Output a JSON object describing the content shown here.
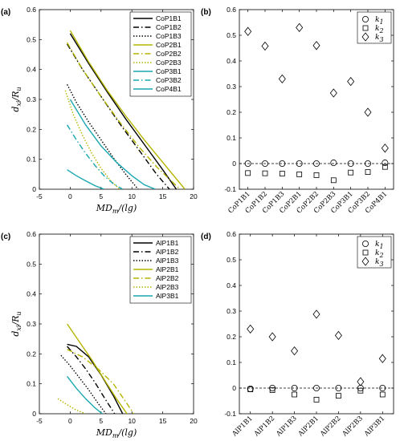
{
  "chart_data": [
    {
      "panel_label": "(a)",
      "type": "line",
      "xlabel": "MD_m/(lg)",
      "ylabel": "d_xi/R_u",
      "xlim": [
        -5,
        20
      ],
      "ylim": [
        0,
        0.6
      ],
      "xticks": [
        -5,
        0,
        5,
        10,
        15,
        20
      ],
      "yticks": [
        0,
        0.1,
        0.2,
        0.3,
        0.4,
        0.5,
        0.6
      ],
      "legend_position": "top-right",
      "series": [
        {
          "name": "CoP1B1",
          "color": "#000000",
          "style": "solid",
          "x": [
            0,
            3,
            6,
            9,
            12,
            15,
            17.2
          ],
          "y": [
            0.52,
            0.42,
            0.325,
            0.235,
            0.15,
            0.065,
            0.0
          ]
        },
        {
          "name": "CoP1B2",
          "color": "#000000",
          "style": "dashdot",
          "x": [
            -0.5,
            2,
            5,
            8,
            11,
            14,
            16.1
          ],
          "y": [
            0.485,
            0.4,
            0.31,
            0.22,
            0.135,
            0.05,
            0.0
          ]
        },
        {
          "name": "CoP1B3",
          "color": "#000000",
          "style": "dotted",
          "x": [
            -0.5,
            1,
            3,
            5,
            7,
            9,
            11
          ],
          "y": [
            0.35,
            0.29,
            0.225,
            0.165,
            0.105,
            0.05,
            0.0
          ]
        },
        {
          "name": "CoP2B1",
          "color": "#b5b500",
          "style": "solid",
          "x": [
            0,
            3,
            6,
            9,
            12,
            15,
            18.6
          ],
          "y": [
            0.53,
            0.425,
            0.33,
            0.245,
            0.165,
            0.09,
            0.0
          ]
        },
        {
          "name": "CoP2B2",
          "color": "#b5b500",
          "style": "dashdot",
          "x": [
            -0.5,
            2,
            5,
            8,
            11,
            14,
            17.8
          ],
          "y": [
            0.49,
            0.4,
            0.31,
            0.225,
            0.145,
            0.075,
            0.0
          ]
        },
        {
          "name": "CoP2B3",
          "color": "#b5b500",
          "style": "dotted",
          "x": [
            -0.8,
            0.5,
            2,
            3.5,
            5,
            6.5,
            8
          ],
          "y": [
            0.33,
            0.25,
            0.18,
            0.12,
            0.07,
            0.03,
            0.0
          ]
        },
        {
          "name": "CoP3B1",
          "color": "#1aa7b0",
          "style": "solid",
          "x": [
            0,
            2.5,
            5,
            7.5,
            10,
            12,
            13.8
          ],
          "y": [
            0.3,
            0.215,
            0.145,
            0.09,
            0.045,
            0.015,
            0.0
          ]
        },
        {
          "name": "CoP3B2",
          "color": "#1aa7b0",
          "style": "dashdot",
          "x": [
            -0.5,
            1,
            2.5,
            4,
            5.5,
            7,
            8.5
          ],
          "y": [
            0.215,
            0.165,
            0.12,
            0.08,
            0.045,
            0.018,
            0.0
          ]
        },
        {
          "name": "CoP4B1",
          "color": "#1aa7b0",
          "style": "solid",
          "x": [
            -0.5,
            1,
            2.5,
            4,
            5.5
          ],
          "y": [
            0.065,
            0.045,
            0.028,
            0.012,
            0.0
          ]
        }
      ]
    },
    {
      "panel_label": "(b)",
      "type": "scatter",
      "categories": [
        "CoP1B1",
        "CoP1B2",
        "CoP1B3",
        "CoP2B1",
        "CoP2B2",
        "CoP2B3",
        "CoP3B1",
        "CoP3B2",
        "CoP4B1"
      ],
      "ylim": [
        -0.1,
        0.6
      ],
      "yticks": [
        -0.1,
        0,
        0.1,
        0.2,
        0.3,
        0.4,
        0.5,
        0.6
      ],
      "legend_position": "top-right",
      "series": [
        {
          "name": "k1",
          "marker": "circle",
          "values": [
            0.0,
            0.0,
            0.0,
            0.0,
            0.0,
            0.003,
            0.0,
            0.0,
            0.003
          ]
        },
        {
          "name": "k2",
          "marker": "square",
          "values": [
            -0.037,
            -0.038,
            -0.039,
            -0.042,
            -0.045,
            -0.065,
            -0.035,
            -0.033,
            -0.013
          ]
        },
        {
          "name": "k3",
          "marker": "diamond",
          "values": [
            0.515,
            0.458,
            0.33,
            0.53,
            0.46,
            0.275,
            0.32,
            0.2,
            0.06
          ]
        }
      ]
    },
    {
      "panel_label": "(c)",
      "type": "line",
      "xlabel": "MD_m/(lg)",
      "ylabel": "d_xi/R_u",
      "xlim": [
        -5,
        20
      ],
      "ylim": [
        0,
        0.6
      ],
      "xticks": [
        -5,
        0,
        5,
        10,
        15,
        20
      ],
      "yticks": [
        0,
        0.1,
        0.2,
        0.3,
        0.4,
        0.5,
        0.6
      ],
      "legend_position": "top-right",
      "series": [
        {
          "name": "AlP1B1",
          "color": "#000000",
          "style": "solid",
          "x": [
            -0.5,
            1,
            3,
            5,
            7,
            8.5
          ],
          "y": [
            0.232,
            0.225,
            0.19,
            0.13,
            0.06,
            0.0
          ]
        },
        {
          "name": "AlP1B2",
          "color": "#000000",
          "style": "dashdot",
          "x": [
            -0.5,
            1,
            2.5,
            4,
            5.5,
            7.2
          ],
          "y": [
            0.225,
            0.19,
            0.15,
            0.105,
            0.055,
            0.0
          ]
        },
        {
          "name": "AlP1B3",
          "color": "#000000",
          "style": "dotted",
          "x": [
            -1.5,
            0,
            1.5,
            3,
            4.5,
            5.8
          ],
          "y": [
            0.195,
            0.16,
            0.12,
            0.08,
            0.035,
            0.0
          ]
        },
        {
          "name": "AlP2B1",
          "color": "#b5b500",
          "style": "solid",
          "x": [
            -0.5,
            1.5,
            3.5,
            5.5,
            7.5,
            9.2
          ],
          "y": [
            0.3,
            0.24,
            0.18,
            0.115,
            0.05,
            0.0
          ]
        },
        {
          "name": "AlP2B2",
          "color": "#b5b500",
          "style": "dashdot",
          "x": [
            -0.5,
            2,
            4.5,
            7,
            9,
            10.3
          ],
          "y": [
            0.215,
            0.19,
            0.15,
            0.1,
            0.04,
            0.0
          ]
        },
        {
          "name": "AlP2B3",
          "color": "#b5b500",
          "style": "dotted",
          "x": [
            -2,
            -0.5,
            1,
            2.5
          ],
          "y": [
            0.05,
            0.03,
            0.012,
            0.0
          ]
        },
        {
          "name": "AlP3B1",
          "color": "#1aa7b0",
          "style": "solid",
          "x": [
            -0.5,
            1,
            2.5,
            4,
            5.2
          ],
          "y": [
            0.125,
            0.085,
            0.05,
            0.02,
            0.0
          ]
        }
      ]
    },
    {
      "panel_label": "(d)",
      "type": "scatter",
      "categories": [
        "AlP1B1",
        "AlP1B2",
        "AlP1B3",
        "AlP2B1",
        "AlP2B2",
        "AlP2B3",
        "AlP3B1"
      ],
      "ylim": [
        -0.1,
        0.6
      ],
      "yticks": [
        -0.1,
        0,
        0.1,
        0.2,
        0.3,
        0.4,
        0.5,
        0.6
      ],
      "legend_position": "top-right",
      "series": [
        {
          "name": "k1",
          "marker": "circle",
          "values": [
            -0.003,
            0.0,
            0.0,
            0.0,
            0.0,
            0.0,
            0.0
          ]
        },
        {
          "name": "k2",
          "marker": "square",
          "values": [
            -0.005,
            -0.008,
            -0.025,
            -0.045,
            -0.03,
            -0.01,
            -0.025
          ]
        },
        {
          "name": "k3",
          "marker": "diamond",
          "values": [
            0.23,
            0.2,
            0.145,
            0.288,
            0.205,
            0.025,
            0.115
          ]
        }
      ]
    }
  ]
}
